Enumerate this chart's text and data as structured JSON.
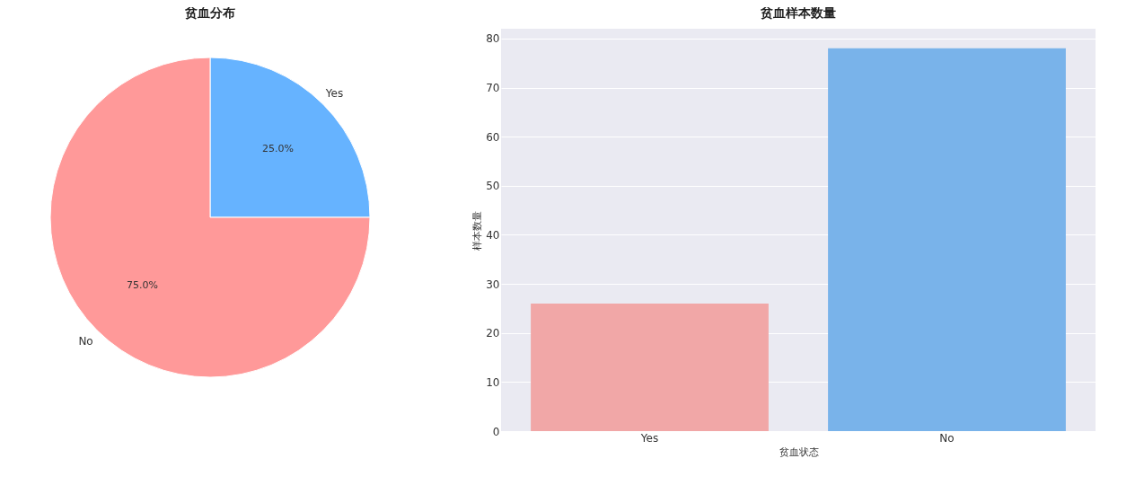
{
  "chart_data": [
    {
      "type": "pie",
      "title": "贫血分布",
      "categories": [
        "Yes",
        "No"
      ],
      "values": [
        25,
        75
      ],
      "colors": [
        "#66b3ff",
        "#ff9999"
      ],
      "value_labels": [
        "25.0%",
        "75.0%"
      ]
    },
    {
      "type": "bar",
      "title": "贫血样本数量",
      "categories": [
        "Yes",
        "No"
      ],
      "values": [
        26,
        78
      ],
      "colors": [
        "#f1a7a7",
        "#79b3ea"
      ],
      "xlabel": "贫血状态",
      "ylabel": "样本数量",
      "ylim": [
        0,
        82
      ],
      "yticks": [
        0,
        10,
        20,
        30,
        40,
        50,
        60,
        70,
        80
      ],
      "grid": "y"
    }
  ]
}
